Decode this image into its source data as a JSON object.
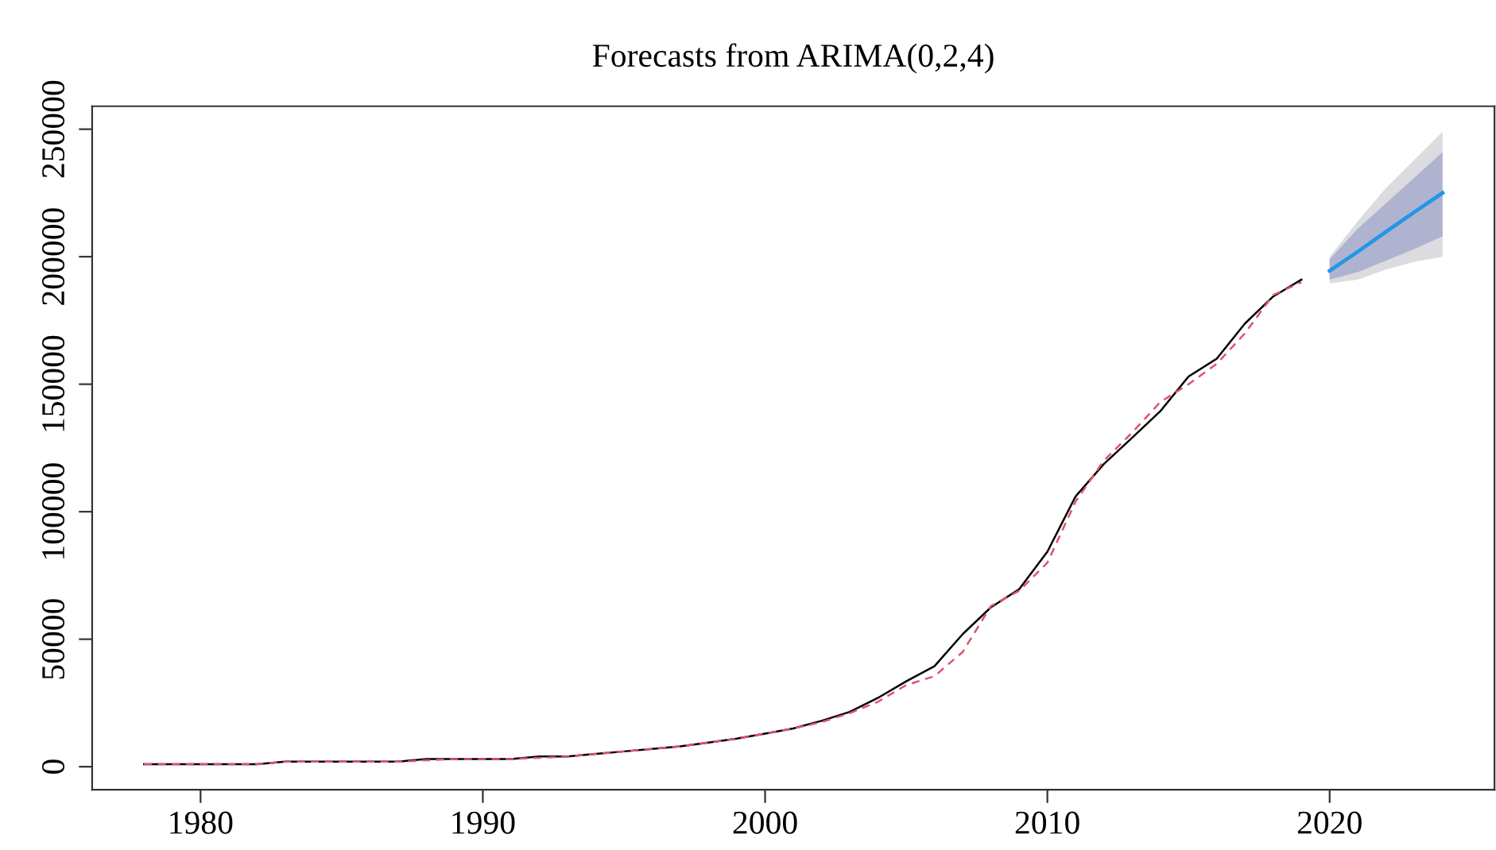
{
  "chart_data": {
    "type": "line",
    "title": "Forecasts from ARIMA(0,2,4)",
    "x": [
      1978,
      1979,
      1980,
      1981,
      1982,
      1983,
      1984,
      1985,
      1986,
      1987,
      1988,
      1989,
      1990,
      1991,
      1992,
      1993,
      1994,
      1995,
      1996,
      1997,
      1998,
      1999,
      2000,
      2001,
      2002,
      2003,
      2004,
      2005,
      2006,
      2007,
      2008,
      2009,
      2010,
      2011,
      2012,
      2013,
      2014,
      2015,
      2016,
      2017,
      2018,
      2019
    ],
    "series": [
      {
        "color": "#000000",
        "line_style": "solid",
        "values": [
          1000,
          1000,
          1000,
          1000,
          1000,
          2000,
          2000,
          2000,
          2000,
          2000,
          3000,
          3000,
          3000,
          3000,
          4000,
          4000,
          5000,
          6000,
          7000,
          8000,
          9500,
          11000,
          13000,
          15000,
          18000,
          21500,
          27000,
          33500,
          39400,
          52000,
          62500,
          69600,
          84300,
          106000,
          118700,
          129000,
          139400,
          153000,
          160000,
          173800,
          184400,
          191000
        ]
      },
      {
        "color": "#df536b",
        "line_style": "dashed",
        "values": [
          1000,
          1000,
          1000,
          1000,
          1000,
          2000,
          2000,
          2000,
          2000,
          2000,
          2500,
          3000,
          3000,
          3000,
          3500,
          4000,
          5000,
          6000,
          7000,
          8000,
          9500,
          11000,
          13000,
          15000,
          17500,
          21000,
          25500,
          32000,
          35500,
          45000,
          63000,
          69000,
          80000,
          104000,
          120000,
          131000,
          143000,
          150000,
          158000,
          170000,
          185000,
          190000
        ]
      },
      {
        "color": "#2297e6",
        "line_style": "solid",
        "x": [
          2020,
          2021,
          2022,
          2023,
          2024
        ],
        "values": [
          194500,
          202000,
          209800,
          217500,
          225000
        ],
        "lower": [
          189500,
          191000,
          195000,
          198000,
          200000
        ],
        "upper": [
          200000,
          214000,
          227000,
          238000,
          249000
        ]
      },
      {
        "color": "#2297e6",
        "line_style": "solid",
        "x": [
          2020,
          2021,
          2022,
          2023,
          2024
        ],
        "values": [
          194500,
          202000,
          209800,
          217500,
          225000
        ],
        "lower": [
          191000,
          194000,
          198500,
          203000,
          208000
        ],
        "upper": [
          199000,
          211000,
          221000,
          231000,
          241000
        ]
      }
    ],
    "xlim": [
      1976.16,
      2025.84
    ],
    "ylim": [
      -9000,
      259000
    ],
    "xticks": [
      1980,
      1990,
      2000,
      2010,
      2020
    ],
    "yticks": [
      0,
      50000,
      100000,
      150000,
      200000,
      250000
    ],
    "grid": false,
    "legend": false
  }
}
